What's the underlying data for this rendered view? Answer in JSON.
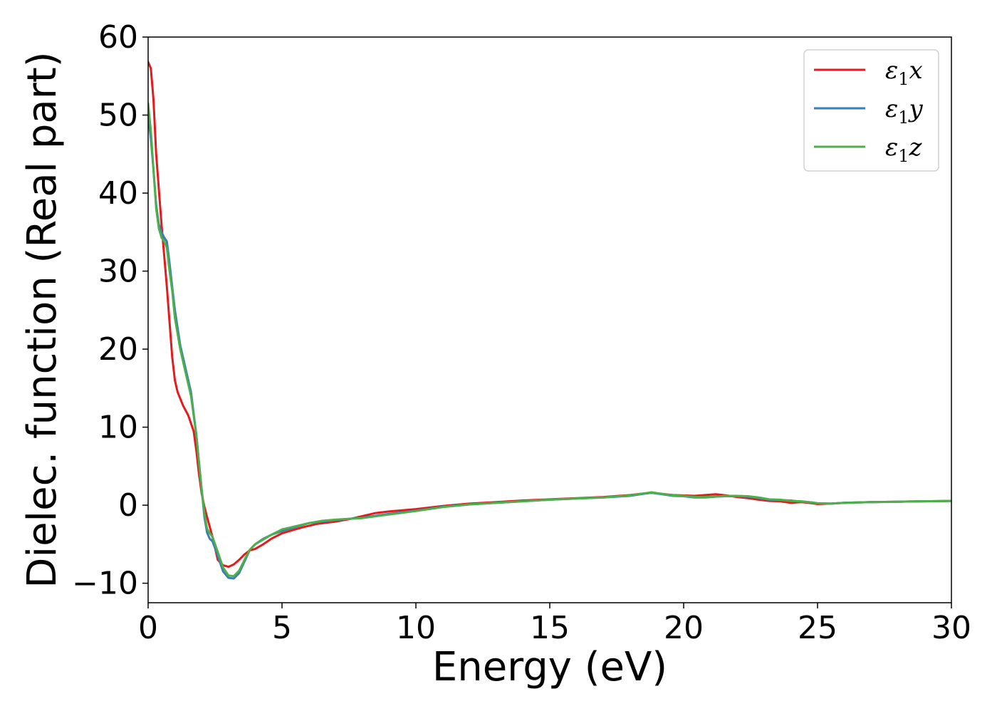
{
  "chart_data": {
    "type": "line",
    "xlabel": "Energy (eV)",
    "ylabel": "Dielec. function (Real part)",
    "xlim": [
      0,
      30
    ],
    "ylim": [
      -12.5,
      60
    ],
    "xticks": [
      0,
      5,
      10,
      15,
      20,
      25,
      30
    ],
    "xtick_labels": [
      "0",
      "5",
      "10",
      "15",
      "20",
      "25",
      "30"
    ],
    "yticks": [
      -10,
      0,
      10,
      20,
      30,
      40,
      50,
      60
    ],
    "ytick_labels": [
      "−10",
      "0",
      "10",
      "20",
      "30",
      "40",
      "50",
      "60"
    ],
    "grid": false,
    "legend_position": "top-right",
    "series": [
      {
        "name": "ε₁x",
        "label_main": "ε",
        "label_sub": "1",
        "label_tail": "x",
        "color": "#e41a1c",
        "x": [
          0,
          0.1,
          0.2,
          0.3,
          0.5,
          0.7,
          0.9,
          1.0,
          1.1,
          1.3,
          1.5,
          1.7,
          1.8,
          1.9,
          2.0,
          2.1,
          2.2,
          2.4,
          2.6,
          2.8,
          3.0,
          3.2,
          3.4,
          3.6,
          3.8,
          4.0,
          4.3,
          4.6,
          5.0,
          5.4,
          5.8,
          6.3,
          7.0,
          7.5,
          8.0,
          8.5,
          9.0,
          10.0,
          11.0,
          12.0,
          13.0,
          14.0,
          15.0,
          16.0,
          17.0,
          18.0,
          18.5,
          18.8,
          19.2,
          19.6,
          20.0,
          20.4,
          20.8,
          21.2,
          21.6,
          22.0,
          22.4,
          22.8,
          23.2,
          23.6,
          24.0,
          24.4,
          24.8,
          25.0,
          25.5,
          26.0,
          26.5,
          27.0,
          28.0,
          29.0,
          30.0
        ],
        "y": [
          56.8,
          56.0,
          52.0,
          45.0,
          36.0,
          28.0,
          19.0,
          16.0,
          14.5,
          12.8,
          11.5,
          9.5,
          7.0,
          4.0,
          1.5,
          -0.2,
          -1.5,
          -4.0,
          -7.0,
          -7.7,
          -7.9,
          -7.6,
          -7.0,
          -6.3,
          -5.8,
          -5.6,
          -5.0,
          -4.3,
          -3.6,
          -3.2,
          -2.8,
          -2.4,
          -2.1,
          -1.8,
          -1.4,
          -1.0,
          -0.8,
          -0.5,
          -0.1,
          0.2,
          0.4,
          0.6,
          0.75,
          0.9,
          1.05,
          1.3,
          1.5,
          1.6,
          1.45,
          1.3,
          1.25,
          1.2,
          1.3,
          1.4,
          1.25,
          1.05,
          0.9,
          0.7,
          0.55,
          0.5,
          0.3,
          0.4,
          0.25,
          0.15,
          0.2,
          0.3,
          0.35,
          0.4,
          0.45,
          0.5,
          0.55
        ]
      },
      {
        "name": "ε₁y",
        "label_main": "ε",
        "label_sub": "1",
        "label_tail": "y",
        "color": "#377eb8",
        "x": [
          0,
          0.1,
          0.2,
          0.3,
          0.4,
          0.5,
          0.6,
          0.7,
          0.8,
          0.9,
          1.0,
          1.2,
          1.4,
          1.6,
          1.8,
          1.9,
          2.0,
          2.1,
          2.2,
          2.3,
          2.4,
          2.5,
          2.6,
          2.8,
          3.0,
          3.2,
          3.4,
          3.6,
          3.8,
          4.0,
          4.3,
          4.6,
          5.0,
          5.5,
          6.0,
          6.5,
          7.0,
          7.5,
          8.0,
          9.0,
          10.0,
          11.0,
          12.0,
          13.0,
          14.0,
          15.0,
          16.0,
          17.0,
          18.0,
          18.5,
          18.8,
          19.2,
          19.6,
          20.0,
          20.4,
          20.8,
          21.2,
          21.6,
          22.0,
          22.4,
          22.8,
          23.2,
          23.6,
          24.0,
          24.4,
          24.8,
          25.0,
          25.5,
          26.0,
          26.5,
          27.0,
          28.0,
          29.0,
          30.0
        ],
        "y": [
          50.0,
          47.0,
          43.0,
          38.5,
          36.0,
          35.0,
          34.3,
          33.8,
          31.0,
          28.0,
          25.0,
          20.5,
          17.5,
          14.5,
          9.0,
          5.5,
          2.0,
          -1.5,
          -3.5,
          -4.3,
          -4.6,
          -5.5,
          -6.5,
          -8.5,
          -9.3,
          -9.4,
          -8.7,
          -7.2,
          -5.7,
          -5.0,
          -4.3,
          -3.8,
          -3.3,
          -2.8,
          -2.3,
          -2.1,
          -1.9,
          -1.75,
          -1.6,
          -1.1,
          -0.7,
          -0.2,
          0.1,
          0.3,
          0.5,
          0.7,
          0.85,
          1.0,
          1.2,
          1.45,
          1.6,
          1.4,
          1.2,
          1.15,
          1.0,
          1.0,
          1.1,
          1.15,
          1.15,
          1.1,
          0.9,
          0.7,
          0.65,
          0.6,
          0.45,
          0.35,
          0.25,
          0.2,
          0.3,
          0.35,
          0.4,
          0.45,
          0.5,
          0.55
        ]
      },
      {
        "name": "ε₁z",
        "label_main": "ε",
        "label_sub": "1",
        "label_tail": "z",
        "color": "#4daf4a",
        "x": [
          0,
          0.1,
          0.2,
          0.3,
          0.4,
          0.5,
          0.6,
          0.7,
          0.8,
          0.9,
          1.0,
          1.2,
          1.4,
          1.6,
          1.8,
          1.9,
          2.0,
          2.1,
          2.2,
          2.3,
          2.4,
          2.5,
          2.6,
          2.8,
          3.0,
          3.2,
          3.4,
          3.6,
          3.8,
          4.0,
          4.3,
          4.6,
          5.0,
          5.5,
          6.0,
          6.5,
          7.0,
          7.5,
          8.0,
          9.0,
          10.0,
          11.0,
          12.0,
          13.0,
          14.0,
          15.0,
          16.0,
          17.0,
          18.0,
          18.5,
          18.8,
          19.2,
          19.6,
          20.0,
          20.4,
          20.8,
          21.2,
          21.6,
          22.0,
          22.4,
          22.8,
          23.2,
          23.6,
          24.0,
          24.4,
          24.8,
          25.0,
          25.5,
          26.0,
          26.5,
          27.0,
          28.0,
          29.0,
          30.0
        ],
        "y": [
          51.5,
          48.0,
          43.0,
          38.0,
          35.5,
          34.3,
          33.8,
          33.0,
          30.0,
          27.5,
          24.0,
          20.0,
          17.0,
          14.0,
          9.0,
          5.5,
          2.0,
          -1.0,
          -3.0,
          -3.6,
          -4.0,
          -5.0,
          -6.0,
          -8.0,
          -9.0,
          -9.1,
          -8.4,
          -7.0,
          -5.7,
          -5.0,
          -4.4,
          -3.8,
          -3.1,
          -2.7,
          -2.3,
          -2.0,
          -1.85,
          -1.75,
          -1.65,
          -1.2,
          -0.75,
          -0.25,
          0.1,
          0.3,
          0.5,
          0.7,
          0.85,
          1.0,
          1.25,
          1.5,
          1.65,
          1.45,
          1.25,
          1.2,
          1.05,
          1.05,
          1.1,
          1.2,
          1.2,
          1.15,
          1.0,
          0.75,
          0.7,
          0.55,
          0.5,
          0.35,
          0.25,
          0.2,
          0.3,
          0.35,
          0.4,
          0.45,
          0.5,
          0.55
        ]
      }
    ]
  }
}
